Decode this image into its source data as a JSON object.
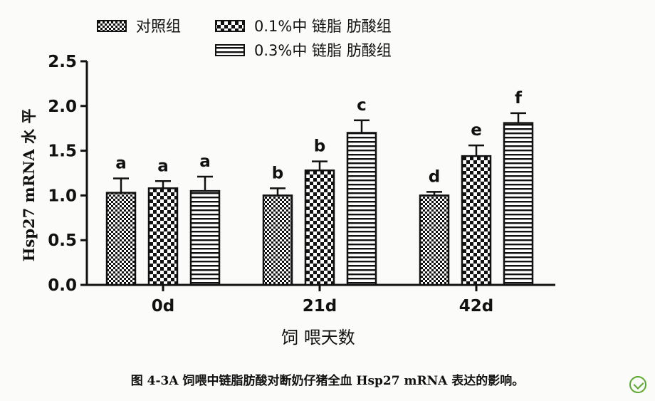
{
  "chart_data": {
    "type": "bar",
    "categories": [
      "0d",
      "21d",
      "42d"
    ],
    "series": [
      {
        "name": "对照组",
        "pattern": "fine-check",
        "values": [
          1.03,
          1.0,
          1.0
        ],
        "errors": [
          0.16,
          0.08,
          0.04
        ],
        "labels": [
          "a",
          "b",
          "d"
        ]
      },
      {
        "name": "0.1%中 链脂 肪酸组",
        "pattern": "coarse-check",
        "values": [
          1.08,
          1.28,
          1.44
        ],
        "errors": [
          0.08,
          0.1,
          0.12
        ],
        "labels": [
          "a",
          "b",
          "e"
        ]
      },
      {
        "name": "0.3%中 链脂 肪酸组",
        "pattern": "horizontal-stripes",
        "values": [
          1.05,
          1.7,
          1.81
        ],
        "errors": [
          0.16,
          0.14,
          0.11
        ],
        "labels": [
          "a",
          "c",
          "f"
        ]
      }
    ],
    "ylim": [
      0,
      2.5
    ],
    "yticks": [
      "0.0",
      "0.5",
      "1.0",
      "1.5",
      "2.0",
      "2.5"
    ],
    "xlabel": "饲 喂天数",
    "ylabel": "Hsp27 mRNA 水 平",
    "legend_position": "top",
    "grid": false
  },
  "caption": "图 4-3A 饲喂中链脂肪酸对断奶仔猪全血 Hsp27 mRNA 表达的影响。",
  "logo_icon": "green-check-circle-icon"
}
